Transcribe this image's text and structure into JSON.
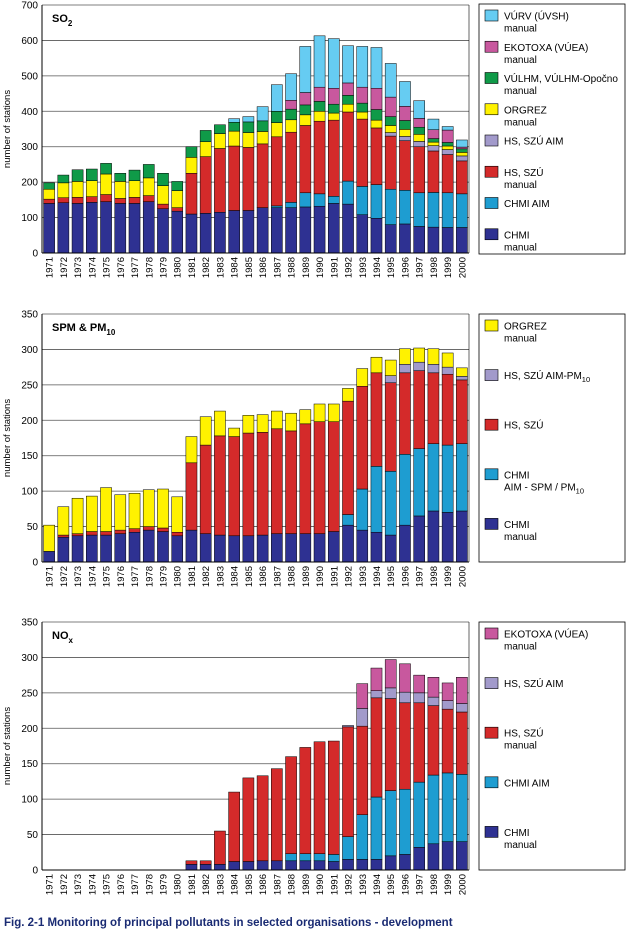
{
  "caption": "Fig. 2-1  Monitoring of principal pollutants in selected organisations - development",
  "years": [
    "1971",
    "1972",
    "1973",
    "1974",
    "1975",
    "1976",
    "1977",
    "1978",
    "1979",
    "1980",
    "1981",
    "1982",
    "1983",
    "1984",
    "1985",
    "1986",
    "1987",
    "1988",
    "1989",
    "1990",
    "1991",
    "1992",
    "1993",
    "1994",
    "1995",
    "1996",
    "1997",
    "1998",
    "1999",
    "2000"
  ],
  "chart_data": [
    {
      "type": "bar",
      "stacked": true,
      "title": "SO",
      "title_sub": "2",
      "ylabel": "number of stations",
      "ylim": [
        0,
        700
      ],
      "yticks": [
        0,
        100,
        200,
        300,
        400,
        500,
        600,
        700
      ],
      "grid": true,
      "legend_position": "right",
      "series": [
        {
          "name": "CHMI",
          "name_line2": "manual",
          "color": "#2e3192",
          "values": [
            140,
            142,
            140,
            143,
            145,
            140,
            140,
            145,
            125,
            118,
            110,
            112,
            115,
            120,
            120,
            128,
            128,
            128,
            130,
            132,
            140,
            138,
            108,
            98,
            80,
            82,
            75,
            73,
            72,
            72
          ]
        },
        {
          "name": "CHMI  AIM",
          "name_line2": "",
          "color": "#1e9dd1",
          "values": [
            0,
            0,
            0,
            0,
            0,
            0,
            0,
            0,
            0,
            0,
            0,
            0,
            0,
            0,
            0,
            0,
            5,
            15,
            40,
            35,
            20,
            65,
            80,
            95,
            100,
            95,
            95,
            98,
            98,
            95
          ]
        },
        {
          "name": "HS, SZÚ",
          "name_line2": "manual",
          "color": "#d42a2a",
          "values": [
            12,
            14,
            17,
            16,
            20,
            14,
            17,
            17,
            13,
            10,
            115,
            160,
            180,
            182,
            178,
            180,
            195,
            198,
            190,
            205,
            215,
            195,
            190,
            160,
            150,
            140,
            130,
            117,
            108,
            93
          ]
        },
        {
          "name": "HS, SZÚ AIM",
          "name_line2": "",
          "color": "#a29acb",
          "values": [
            0,
            0,
            0,
            0,
            0,
            0,
            0,
            0,
            0,
            0,
            0,
            0,
            0,
            0,
            0,
            0,
            0,
            0,
            0,
            0,
            0,
            0,
            0,
            0,
            10,
            12,
            15,
            15,
            14,
            14
          ]
        },
        {
          "name": "ORGREZ",
          "name_line2": "manual",
          "color": "#fff200",
          "values": [
            28,
            42,
            45,
            45,
            58,
            48,
            47,
            50,
            52,
            48,
            45,
            42,
            42,
            42,
            42,
            35,
            40,
            35,
            30,
            28,
            20,
            22,
            20,
            22,
            20,
            20,
            20,
            10,
            10,
            10
          ]
        },
        {
          "name": "VÚLHM, VÚLHM-Opočno",
          "name_line2": "manual",
          "color": "#0f9a48",
          "values": [
            18,
            22,
            33,
            33,
            30,
            23,
            30,
            38,
            35,
            26,
            30,
            32,
            25,
            25,
            30,
            30,
            32,
            30,
            28,
            28,
            25,
            25,
            25,
            30,
            25,
            25,
            20,
            10,
            10,
            10
          ]
        },
        {
          "name": "EKOTOXA (VÚEA)",
          "name_line2": "manual",
          "color": "#c8589e",
          "values": [
            0,
            0,
            0,
            0,
            0,
            0,
            0,
            0,
            0,
            0,
            0,
            0,
            0,
            0,
            0,
            0,
            0,
            25,
            35,
            40,
            45,
            35,
            45,
            60,
            55,
            40,
            25,
            25,
            35,
            5
          ]
        },
        {
          "name": "VÚRV (ÚVSH)",
          "name_line2": "manual",
          "color": "#66ccf2",
          "values": [
            0,
            0,
            0,
            0,
            0,
            0,
            0,
            0,
            0,
            0,
            0,
            0,
            0,
            10,
            15,
            40,
            75,
            75,
            130,
            145,
            140,
            105,
            115,
            115,
            95,
            70,
            50,
            30,
            10,
            20
          ]
        }
      ]
    },
    {
      "type": "bar",
      "stacked": true,
      "title": "SPM & PM",
      "title_sub": "10",
      "ylabel": "number of stations",
      "ylim": [
        0,
        350
      ],
      "yticks": [
        0,
        50,
        100,
        150,
        200,
        250,
        300,
        350
      ],
      "grid": true,
      "legend_position": "right",
      "series": [
        {
          "name": "CHMI",
          "name_line2": "manual",
          "color": "#2e3192",
          "values": [
            15,
            35,
            37,
            38,
            38,
            40,
            42,
            45,
            43,
            37,
            45,
            40,
            38,
            37,
            37,
            38,
            40,
            40,
            40,
            40,
            43,
            52,
            45,
            42,
            38,
            52,
            65,
            72,
            70,
            72
          ]
        },
        {
          "name": "CHMI",
          "name_line2": "AIM - SPM / PM",
          "name_line2_sub": "10",
          "color": "#1e9dd1",
          "values": [
            0,
            0,
            0,
            0,
            0,
            0,
            0,
            0,
            0,
            0,
            0,
            0,
            0,
            0,
            0,
            0,
            0,
            0,
            0,
            0,
            0,
            15,
            58,
            93,
            90,
            100,
            95,
            95,
            95,
            95
          ]
        },
        {
          "name": "HS, SZÚ",
          "name_line2": "",
          "color": "#d42a2a",
          "values": [
            0,
            3,
            3,
            5,
            5,
            5,
            5,
            5,
            5,
            5,
            95,
            125,
            140,
            140,
            145,
            145,
            148,
            145,
            155,
            158,
            155,
            160,
            145,
            132,
            125,
            115,
            110,
            100,
            100,
            90
          ]
        },
        {
          "name": "HS, SZÚ AIM-PM",
          "name_sub": "10",
          "name_line2": "",
          "color": "#a29acb",
          "values": [
            0,
            0,
            0,
            0,
            0,
            0,
            0,
            0,
            0,
            0,
            0,
            0,
            0,
            0,
            0,
            0,
            0,
            0,
            0,
            0,
            0,
            0,
            0,
            0,
            10,
            12,
            12,
            12,
            10,
            5
          ]
        },
        {
          "name": "ORGREZ",
          "name_line2": "manual",
          "color": "#fff200",
          "values": [
            37,
            40,
            50,
            50,
            62,
            50,
            50,
            52,
            55,
            50,
            37,
            40,
            35,
            12,
            25,
            25,
            25,
            25,
            20,
            25,
            25,
            18,
            25,
            22,
            22,
            22,
            20,
            22,
            20,
            12
          ]
        }
      ]
    },
    {
      "type": "bar",
      "stacked": true,
      "title": "NO",
      "title_sub": "x",
      "ylabel": "number of stations",
      "ylim": [
        0,
        350
      ],
      "yticks": [
        0,
        50,
        100,
        150,
        200,
        250,
        300,
        350
      ],
      "grid": true,
      "legend_position": "right",
      "series": [
        {
          "name": "CHMI",
          "name_line2": "manual",
          "color": "#2e3192",
          "values": [
            0,
            0,
            0,
            0,
            0,
            0,
            0,
            0,
            0,
            0,
            8,
            8,
            8,
            12,
            12,
            13,
            13,
            13,
            13,
            13,
            12,
            15,
            15,
            15,
            20,
            22,
            32,
            37,
            40,
            40
          ]
        },
        {
          "name": "CHMI  AIM",
          "name_line2": "",
          "color": "#1e9dd1",
          "values": [
            0,
            0,
            0,
            0,
            0,
            0,
            0,
            0,
            0,
            0,
            0,
            0,
            0,
            0,
            0,
            0,
            0,
            10,
            10,
            10,
            10,
            32,
            63,
            88,
            92,
            92,
            92,
            97,
            97,
            95
          ]
        },
        {
          "name": "HS, SZÚ",
          "name_line2": "manual",
          "color": "#d42a2a",
          "values": [
            0,
            0,
            0,
            0,
            0,
            0,
            0,
            0,
            0,
            0,
            5,
            5,
            47,
            98,
            118,
            120,
            130,
            137,
            150,
            158,
            160,
            155,
            125,
            140,
            130,
            122,
            112,
            98,
            90,
            88
          ]
        },
        {
          "name": "HS, SZÚ AIM",
          "name_line2": "",
          "color": "#a29acb",
          "values": [
            0,
            0,
            0,
            0,
            0,
            0,
            0,
            0,
            0,
            0,
            0,
            0,
            0,
            0,
            0,
            0,
            0,
            0,
            0,
            0,
            0,
            2,
            25,
            10,
            15,
            15,
            14,
            12,
            12,
            12
          ]
        },
        {
          "name": "EKOTOXA (VÚEA)",
          "name_line2": "manual",
          "color": "#c8589e",
          "values": [
            0,
            0,
            0,
            0,
            0,
            0,
            0,
            0,
            0,
            0,
            0,
            0,
            0,
            0,
            0,
            0,
            0,
            0,
            0,
            0,
            0,
            0,
            35,
            32,
            40,
            40,
            25,
            28,
            25,
            37
          ]
        }
      ]
    }
  ]
}
